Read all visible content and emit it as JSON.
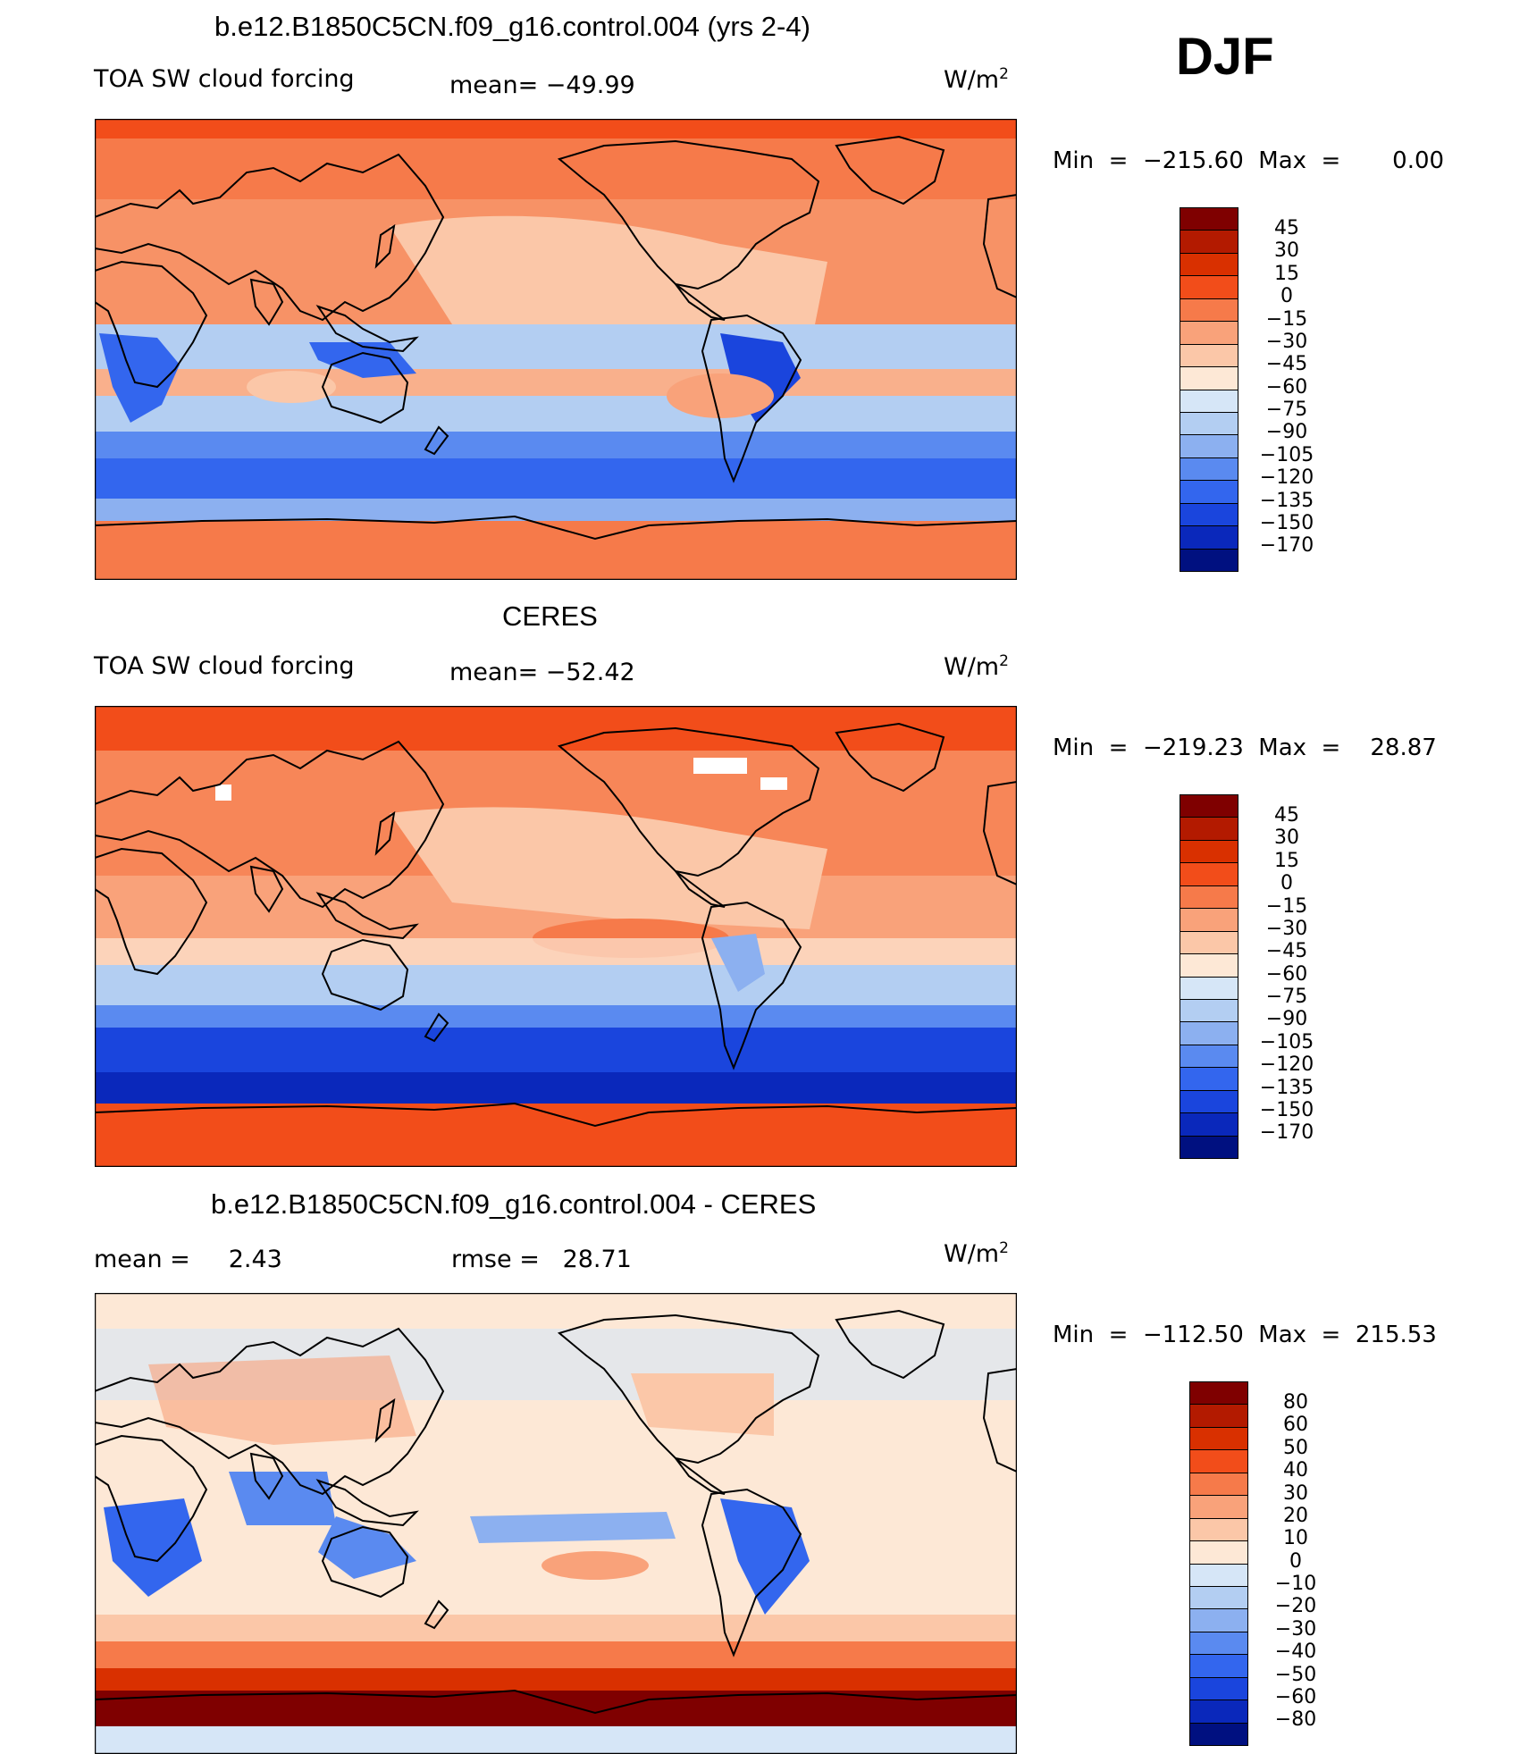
{
  "season": "DJF",
  "units": "W/m",
  "units_exp": "2",
  "panels": [
    {
      "title": "b.e12.B1850C5CN.f09_g16.control.004 (yrs 2-4)",
      "left_label": "TOA SW cloud forcing",
      "mid_prefix": "mean=",
      "mid_value": "−49.99",
      "minmax": "Min  =  −215.60  Max  =       0.00",
      "colorbar": [
        "45",
        "30",
        "15",
        "0",
        "−15",
        "−30",
        "−45",
        "−60",
        "−75",
        "−90",
        "−105",
        "−120",
        "−135",
        "−150",
        "−170"
      ],
      "colors": [
        "#7f0000",
        "#b31a00",
        "#d93000",
        "#f24d1a",
        "#f67a4a",
        "#f9a27a",
        "#fbc7a8",
        "#fde8d6",
        "#d6e6f7",
        "#b3cef2",
        "#8cb0f0",
        "#5a8af0",
        "#3366ee",
        "#1a45dd",
        "#0a28bb",
        "#001080"
      ]
    },
    {
      "title": "CERES",
      "left_label": "TOA SW cloud forcing",
      "mid_prefix": "mean=",
      "mid_value": "−52.42",
      "minmax": "Min  =  −219.23  Max  =    28.87",
      "colorbar": [
        "45",
        "30",
        "15",
        "0",
        "−15",
        "−30",
        "−45",
        "−60",
        "−75",
        "−90",
        "−105",
        "−120",
        "−135",
        "−150",
        "−170"
      ],
      "colors": [
        "#7f0000",
        "#b31a00",
        "#d93000",
        "#f24d1a",
        "#f67a4a",
        "#f9a27a",
        "#fbc7a8",
        "#fde8d6",
        "#d6e6f7",
        "#b3cef2",
        "#8cb0f0",
        "#5a8af0",
        "#3366ee",
        "#1a45dd",
        "#0a28bb",
        "#001080"
      ]
    },
    {
      "title": "b.e12.B1850C5CN.f09_g16.control.004 - CERES",
      "left_label": "mean =     2.43",
      "mid_prefix": "rmse =",
      "mid_value": "28.71",
      "minmax": "Min  =  −112.50  Max  =  215.53",
      "colorbar": [
        "80",
        "60",
        "50",
        "40",
        "30",
        "20",
        "10",
        "0",
        "−10",
        "−20",
        "−30",
        "−40",
        "−50",
        "−60",
        "−80"
      ],
      "colors": [
        "#7f0000",
        "#b31a00",
        "#d93000",
        "#f24d1a",
        "#f67a4a",
        "#f9a27a",
        "#fbc7a8",
        "#fde8d6",
        "#d6e6f7",
        "#b3cef2",
        "#8cb0f0",
        "#5a8af0",
        "#3366ee",
        "#1a45dd",
        "#0a28bb",
        "#001080"
      ]
    }
  ]
}
